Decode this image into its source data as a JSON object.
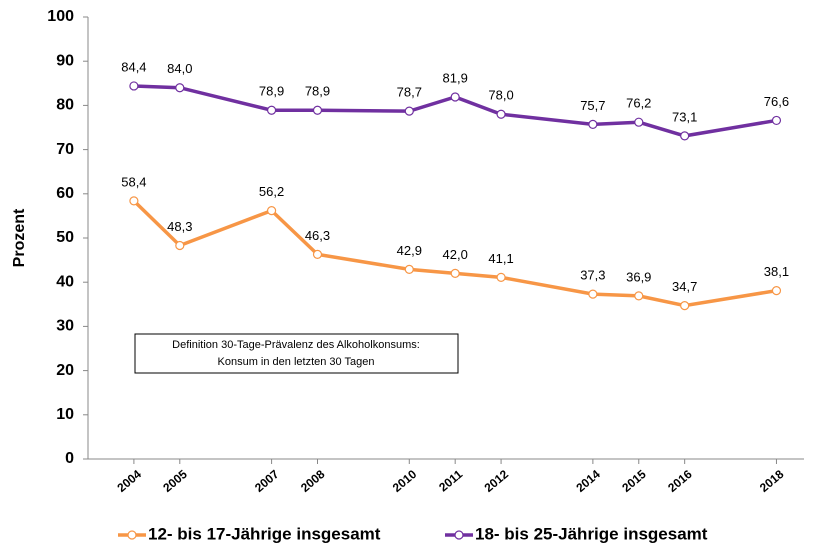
{
  "chart_data": {
    "type": "line",
    "y_label": "Prozent",
    "annotation": [
      "Definition 30-Tage-Prävalenz des Alkoholkonsums:",
      "Konsum in den letzten 30 Tagen"
    ],
    "x": [
      2004,
      2005,
      2007,
      2008,
      2010,
      2011,
      2012,
      2014,
      2015,
      2016,
      2018
    ],
    "xlim": [
      2003,
      2018.6
    ],
    "xticks": [
      2004,
      2005,
      2007,
      2008,
      2010,
      2011,
      2012,
      2014,
      2015,
      2016,
      2018
    ],
    "ylim": [
      0,
      100
    ],
    "yticks": [
      0,
      10,
      20,
      30,
      40,
      50,
      60,
      70,
      80,
      90,
      100
    ],
    "legend": "bottom",
    "series": [
      {
        "name": "12- bis 17-Jährige insgesamt",
        "color": "#f79646",
        "values": [
          58.4,
          48.3,
          56.2,
          46.3,
          42.9,
          42.0,
          41.1,
          37.3,
          36.9,
          34.7,
          38.1
        ],
        "value_labels": [
          "58,4",
          "48,3",
          "56,2",
          "46,3",
          "42,9",
          "42,0",
          "41,1",
          "37,3",
          "36,9",
          "34,7",
          "38,1"
        ]
      },
      {
        "name": "18- bis 25-Jährige insgesamt",
        "color": "#7030a0",
        "values": [
          84.4,
          84.0,
          78.9,
          78.9,
          78.7,
          81.9,
          78.0,
          75.7,
          76.2,
          73.1,
          76.6
        ],
        "value_labels": [
          "84,4",
          "84,0",
          "78,9",
          "78,9",
          "78,7",
          "81,9",
          "78,0",
          "75,7",
          "76,2",
          "73,1",
          "76,6"
        ]
      }
    ]
  }
}
